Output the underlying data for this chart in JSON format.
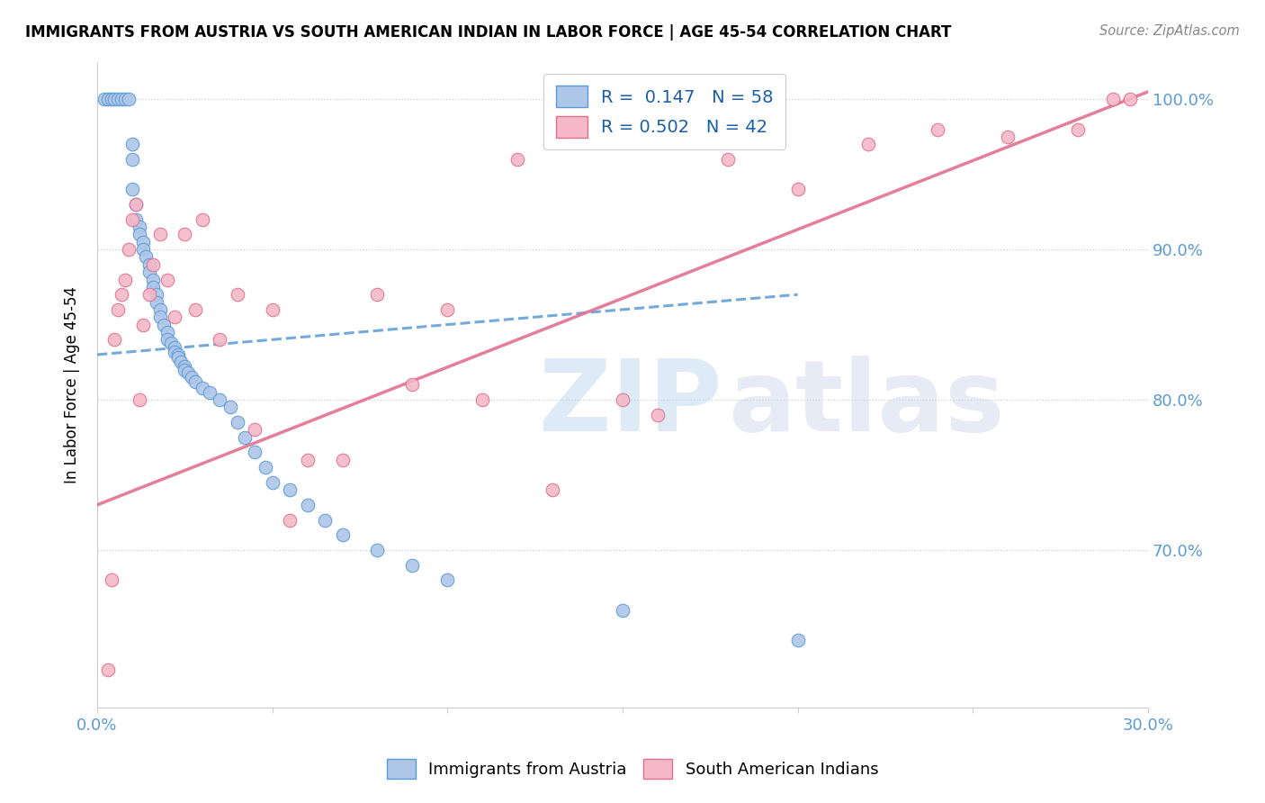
{
  "title": "IMMIGRANTS FROM AUSTRIA VS SOUTH AMERICAN INDIAN IN LABOR FORCE | AGE 45-54 CORRELATION CHART",
  "source": "Source: ZipAtlas.com",
  "ylabel": "In Labor Force | Age 45-54",
  "xmin": 0.0,
  "xmax": 0.3,
  "ymin": 0.595,
  "ymax": 1.025,
  "xtick_vals": [
    0.0,
    0.05,
    0.1,
    0.15,
    0.2,
    0.25,
    0.3
  ],
  "xtick_labels": [
    "0.0%",
    "",
    "",
    "",
    "",
    "",
    "30.0%"
  ],
  "ytick_vals": [
    0.7,
    0.8,
    0.9,
    1.0
  ],
  "ytick_labels": [
    "70.0%",
    "80.0%",
    "90.0%",
    "100.0%"
  ],
  "legend_R1": "R =  0.147",
  "legend_N1": "N = 58",
  "legend_R2": "R = 0.502",
  "legend_N2": "N = 42",
  "color_austria": "#aec6e8",
  "color_sai": "#f4b8c8",
  "color_austria_edge": "#5b9bd5",
  "color_sai_edge": "#e07090",
  "color_austria_line": "#5b9bd5",
  "color_sai_line": "#e07090",
  "austria_x": [
    0.002,
    0.003,
    0.004,
    0.005,
    0.006,
    0.007,
    0.008,
    0.009,
    0.01,
    0.01,
    0.01,
    0.011,
    0.011,
    0.012,
    0.012,
    0.013,
    0.013,
    0.014,
    0.015,
    0.015,
    0.016,
    0.016,
    0.017,
    0.017,
    0.018,
    0.018,
    0.019,
    0.02,
    0.02,
    0.021,
    0.022,
    0.022,
    0.023,
    0.023,
    0.024,
    0.025,
    0.025,
    0.026,
    0.027,
    0.028,
    0.03,
    0.032,
    0.035,
    0.038,
    0.04,
    0.042,
    0.045,
    0.048,
    0.05,
    0.055,
    0.06,
    0.065,
    0.07,
    0.08,
    0.09,
    0.1,
    0.15,
    0.2
  ],
  "austria_y": [
    1.0,
    1.0,
    1.0,
    1.0,
    1.0,
    1.0,
    1.0,
    1.0,
    0.97,
    0.96,
    0.94,
    0.93,
    0.92,
    0.915,
    0.91,
    0.905,
    0.9,
    0.895,
    0.89,
    0.885,
    0.88,
    0.875,
    0.87,
    0.865,
    0.86,
    0.855,
    0.85,
    0.845,
    0.84,
    0.838,
    0.835,
    0.832,
    0.83,
    0.828,
    0.825,
    0.822,
    0.82,
    0.818,
    0.815,
    0.812,
    0.808,
    0.805,
    0.8,
    0.795,
    0.785,
    0.775,
    0.765,
    0.755,
    0.745,
    0.74,
    0.73,
    0.72,
    0.71,
    0.7,
    0.69,
    0.68,
    0.66,
    0.64
  ],
  "sai_x": [
    0.003,
    0.004,
    0.005,
    0.006,
    0.007,
    0.008,
    0.009,
    0.01,
    0.011,
    0.012,
    0.013,
    0.015,
    0.016,
    0.018,
    0.02,
    0.022,
    0.025,
    0.028,
    0.03,
    0.035,
    0.04,
    0.045,
    0.05,
    0.055,
    0.06,
    0.07,
    0.08,
    0.09,
    0.1,
    0.11,
    0.12,
    0.13,
    0.15,
    0.16,
    0.18,
    0.2,
    0.22,
    0.24,
    0.26,
    0.28,
    0.29,
    0.295
  ],
  "sai_y": [
    0.62,
    0.68,
    0.84,
    0.86,
    0.87,
    0.88,
    0.9,
    0.92,
    0.93,
    0.8,
    0.85,
    0.87,
    0.89,
    0.91,
    0.88,
    0.855,
    0.91,
    0.86,
    0.92,
    0.84,
    0.87,
    0.78,
    0.86,
    0.72,
    0.76,
    0.76,
    0.87,
    0.81,
    0.86,
    0.8,
    0.96,
    0.74,
    0.8,
    0.79,
    0.96,
    0.94,
    0.97,
    0.98,
    0.975,
    0.98,
    1.0,
    1.0
  ]
}
